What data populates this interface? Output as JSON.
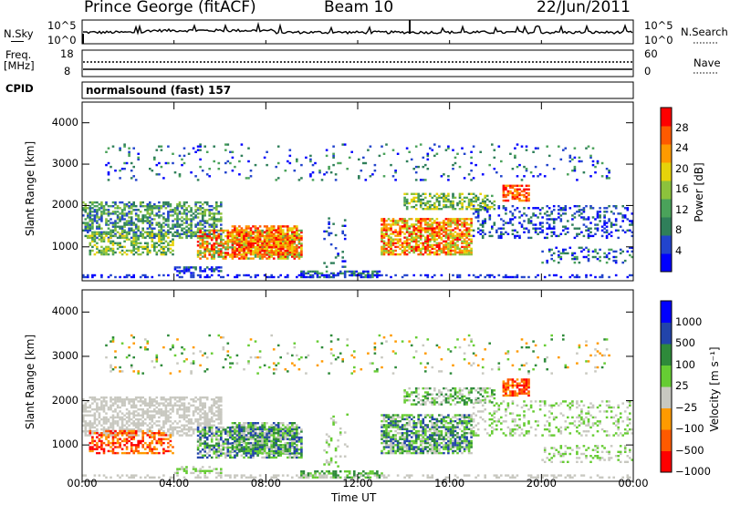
{
  "header": {
    "station": "Prince George (fitACF)",
    "beam": "Beam 10",
    "date": "22/Jun/2011"
  },
  "strip_labels": {
    "nsky": "N.Sky",
    "nsearch": "N.Search",
    "nsky_top": "10^5",
    "nsky_bottom": "10^0",
    "nsearch_top": "10^5",
    "nsearch_bottom": "10^0",
    "freq_line1": "Freq.",
    "freq_line2": "[MHz]",
    "freq_top": "18",
    "freq_bottom": "8",
    "nave": "Nave",
    "nave_top": "60",
    "nave_bottom": "0",
    "cpid": "CPID",
    "cpid_value": "normalsound (fast) 157"
  },
  "colors": {
    "power": [
      "#0000ff",
      "#2244cc",
      "#2f7f5a",
      "#4aa25a",
      "#8cc23c",
      "#e6d20a",
      "#ff9a00",
      "#ff5a00",
      "#ff0000"
    ],
    "velocity": [
      "#ff0000",
      "#ff5a00",
      "#ff9a00",
      "#c8c8c0",
      "#66cc33",
      "#2e8a3a",
      "#2244aa",
      "#0000ff"
    ]
  },
  "chart_data": [
    {
      "type": "heatmap",
      "panel": "power",
      "ylabel": "Slant Range [km]",
      "ylim": [
        180,
        4500
      ],
      "y_ticks": [
        "1000",
        "2000",
        "3000",
        "4000"
      ],
      "colorbar_label": "Power [dB]",
      "colorbar_ticks": [
        "4",
        "8",
        "12",
        "16",
        "20",
        "24",
        "28"
      ],
      "colorbar_range": [
        0,
        32
      ]
    },
    {
      "type": "heatmap",
      "panel": "velocity",
      "ylabel": "Slant Range [km]",
      "ylim": [
        180,
        4500
      ],
      "y_ticks": [
        "1000",
        "2000",
        "3000",
        "4000"
      ],
      "colorbar_label": "Velocity [m s⁻¹]",
      "colorbar_ticks": [
        "1000",
        "500",
        "100",
        "25",
        "−25",
        "−100",
        "−500",
        "−1000"
      ]
    }
  ],
  "x_axis": {
    "label": "Time UT",
    "ticks": [
      "00:00",
      "04:00",
      "08:00",
      "12:00",
      "16:00",
      "20:00",
      "00:00"
    ]
  }
}
